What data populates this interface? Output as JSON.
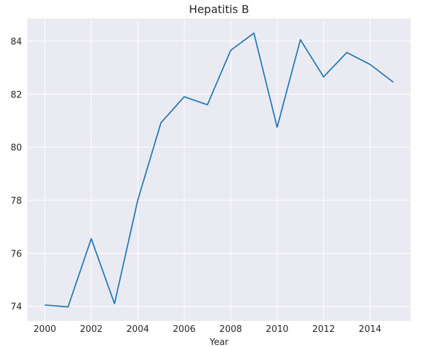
{
  "chart_data": {
    "type": "line",
    "title": "Hepatitis B",
    "xlabel": "Year",
    "ylabel": "",
    "x": [
      2000,
      2001,
      2002,
      2003,
      2004,
      2005,
      2006,
      2007,
      2008,
      2009,
      2010,
      2011,
      2012,
      2013,
      2014,
      2015
    ],
    "series": [
      {
        "values": [
          74.05,
          73.98,
          76.55,
          74.1,
          78.0,
          80.92,
          81.9,
          81.6,
          83.65,
          84.3,
          80.75,
          84.05,
          82.65,
          83.57,
          83.12,
          82.45
        ]
      }
    ],
    "xlim": [
      1999.25,
      2015.75
    ],
    "ylim": [
      73.45,
      84.85
    ],
    "xticks": [
      "2000",
      "2002",
      "2004",
      "2006",
      "2008",
      "2010",
      "2012",
      "2014"
    ],
    "yticks": [
      "74",
      "76",
      "78",
      "80",
      "82",
      "84"
    ],
    "grid": true,
    "colors": {
      "line": "#1f77b4",
      "background": "#eaeaf2",
      "grid": "#ffffff"
    }
  }
}
